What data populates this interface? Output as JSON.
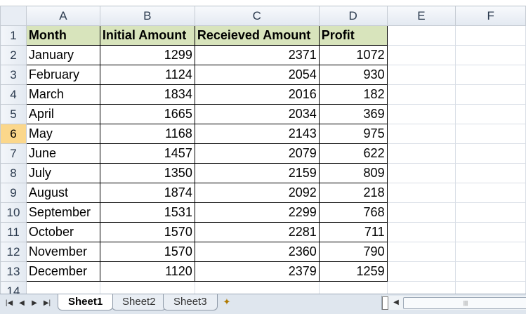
{
  "columns": [
    "A",
    "B",
    "C",
    "D",
    "E",
    "F"
  ],
  "header_row": {
    "row": "1",
    "cells": [
      "Month",
      "Initial Amount",
      "Receieved Amount",
      "Profit"
    ]
  },
  "rows": [
    {
      "row": "2",
      "month": "January",
      "initial": "1299",
      "received": "2371",
      "profit": "1072"
    },
    {
      "row": "3",
      "month": "February",
      "initial": "1124",
      "received": "2054",
      "profit": "930"
    },
    {
      "row": "4",
      "month": "March",
      "initial": "1834",
      "received": "2016",
      "profit": "182"
    },
    {
      "row": "5",
      "month": "April",
      "initial": "1665",
      "received": "2034",
      "profit": "369"
    },
    {
      "row": "6",
      "month": "May",
      "initial": "1168",
      "received": "2143",
      "profit": "975"
    },
    {
      "row": "7",
      "month": "June",
      "initial": "1457",
      "received": "2079",
      "profit": "622"
    },
    {
      "row": "8",
      "month": "July",
      "initial": "1350",
      "received": "2159",
      "profit": "809"
    },
    {
      "row": "9",
      "month": "August",
      "initial": "1874",
      "received": "2092",
      "profit": "218"
    },
    {
      "row": "10",
      "month": "September",
      "initial": "1531",
      "received": "2299",
      "profit": "768"
    },
    {
      "row": "11",
      "month": "October",
      "initial": "1570",
      "received": "2281",
      "profit": "711"
    },
    {
      "row": "12",
      "month": "November",
      "initial": "1570",
      "received": "2360",
      "profit": "790"
    },
    {
      "row": "13",
      "month": "December",
      "initial": "1120",
      "received": "2379",
      "profit": "1259"
    }
  ],
  "extra_rows": [
    "14"
  ],
  "active_row": "6",
  "sheet_tabs": [
    {
      "label": "Sheet1",
      "active": true
    },
    {
      "label": "Sheet2",
      "active": false
    },
    {
      "label": "Sheet3",
      "active": false
    }
  ],
  "colors": {
    "header_fill": "#d8e4bc",
    "active_row_header": "#fbd78b",
    "gridline": "#d9dee6"
  },
  "icons": {
    "nav_first": "first-sheet-icon",
    "nav_prev": "prev-sheet-icon",
    "nav_next": "next-sheet-icon",
    "nav_last": "last-sheet-icon",
    "new_sheet": "insert-worksheet-icon"
  }
}
